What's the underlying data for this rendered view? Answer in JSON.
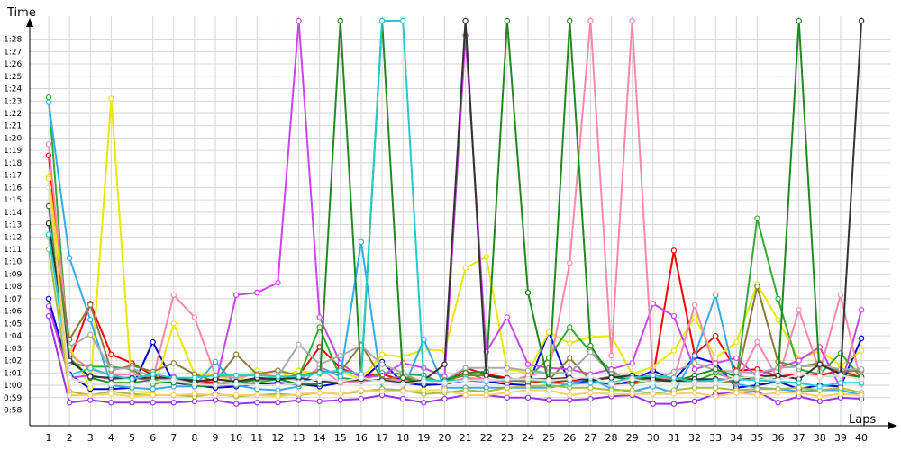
{
  "chart_data": {
    "type": "line",
    "ylabel": "Time",
    "xlabel": "Laps",
    "x": [
      1,
      2,
      3,
      4,
      5,
      6,
      7,
      8,
      9,
      10,
      11,
      12,
      13,
      14,
      15,
      16,
      17,
      18,
      19,
      20,
      21,
      22,
      23,
      24,
      25,
      26,
      27,
      28,
      29,
      30,
      31,
      32,
      33,
      34,
      35,
      36,
      37,
      38,
      39,
      40
    ],
    "y_ticks": [
      "0:58",
      "0:59",
      "1:00",
      "1:01",
      "1:02",
      "1:03",
      "1:04",
      "1:05",
      "1:06",
      "1:07",
      "1:08",
      "1:09",
      "1:10",
      "1:11",
      "1:12",
      "1:13",
      "1:14",
      "1:15",
      "1:16",
      "1:17",
      "1:18",
      "1:19",
      "1:20",
      "1:21",
      "1:22",
      "1:23",
      "1:24",
      "1:25",
      "1:26",
      "1:27",
      "1:28"
    ],
    "ylim_seconds": [
      57.2,
      89.5
    ],
    "grid": true,
    "series": [
      {
        "color": "#ff0000",
        "values": [
          78.6,
          62,
          66.6,
          62.5,
          61.8,
          60.8,
          60.6,
          60.4,
          60.2,
          60.1,
          60.5,
          60.6,
          60.8,
          63.1,
          61.4,
          60.7,
          60.9,
          60.4,
          60.3,
          60.1,
          61.4,
          60.9,
          60.6,
          60.3,
          60.2,
          60.4,
          60.3,
          60.1,
          60.2,
          60.7,
          70.9,
          62.5,
          64,
          61.2,
          61.3,
          60.7,
          60.9,
          60.8,
          61.2,
          60.6
        ]
      },
      {
        "color": "#0000dd",
        "values": [
          67,
          60.9,
          59.7,
          59.7,
          59.8,
          63.5,
          60.2,
          60,
          59.8,
          59.9,
          60.1,
          60.2,
          60.1,
          59.9,
          60.2,
          60.4,
          61.9,
          60.2,
          60,
          60.1,
          60.4,
          60.3,
          60.1,
          60,
          64.3,
          60.1,
          60.3,
          60.1,
          60.4,
          61.2,
          60.4,
          62.3,
          61.8,
          59.8,
          60,
          60.3,
          59.7,
          60,
          59.9,
          63.8
        ]
      },
      {
        "color": "#e8e800",
        "values": [
          76.9,
          63.1,
          59.8,
          83.2,
          59.5,
          59.4,
          65,
          60.9,
          60.8,
          60.3,
          61.2,
          60.6,
          61.2,
          60.9,
          61.1,
          60.5,
          62.5,
          62.3,
          62.9,
          62.8,
          69.5,
          70.4,
          61.3,
          61,
          64.3,
          63.4,
          63.9,
          64,
          60.9,
          61.5,
          62.8,
          65.5,
          62.2,
          63.5,
          68.2,
          65.3,
          62.1,
          62.8,
          61.6,
          62.8
        ]
      },
      {
        "color": "#33aa33",
        "values": [
          83.3,
          61.8,
          61.5,
          61.5,
          61.3,
          60.1,
          60.4,
          59.9,
          60,
          60,
          60.2,
          60.5,
          60.7,
          64.7,
          60.6,
          60.4,
          61,
          60.9,
          60.8,
          60.1,
          61.1,
          60.4,
          60.4,
          60.6,
          62.2,
          64.7,
          62.7,
          61.2,
          60.1,
          60.4,
          60.3,
          60.3,
          61,
          60.4,
          73.5,
          67,
          61.3,
          60.9,
          62.6,
          60.6
        ]
      },
      {
        "color": "#cc44ee",
        "values": [
          66.4,
          60.6,
          60.8,
          60.5,
          60.6,
          60.4,
          60.7,
          60.2,
          60,
          67.3,
          67.5,
          68.3,
          89.5,
          65.5,
          61.8,
          60.6,
          60.8,
          61.8,
          61.4,
          60.7,
          88.3,
          62.7,
          65.5,
          61.7,
          61.4,
          61.3,
          60.9,
          61.3,
          61.8,
          66.6,
          65.6,
          61.3,
          61.8,
          62.2,
          60.7,
          61.4,
          62,
          63.1,
          59.8,
          66.1
        ]
      },
      {
        "color": "#9933ee",
        "values": [
          65.6,
          58.6,
          58.8,
          58.6,
          58.6,
          58.6,
          58.6,
          58.7,
          58.8,
          58.5,
          58.6,
          58.6,
          58.8,
          58.7,
          58.8,
          58.9,
          59.2,
          58.9,
          58.6,
          58.9,
          59.2,
          59.2,
          59,
          59,
          58.8,
          58.8,
          58.9,
          59.1,
          59.2,
          58.5,
          58.5,
          58.7,
          59.3,
          59.4,
          59.5,
          58.6,
          59.1,
          58.7,
          59,
          58.9
        ]
      },
      {
        "color": "#33aaee",
        "values": [
          82.9,
          70.3,
          65.3,
          60,
          59.8,
          59.7,
          59.9,
          59.9,
          61.9,
          60,
          59.7,
          59.6,
          59.9,
          61.5,
          60.7,
          71.6,
          59.7,
          59.6,
          63.7,
          59.8,
          59.8,
          59.8,
          59.8,
          59.8,
          59.8,
          60.1,
          60.6,
          59.7,
          59.5,
          59.9,
          59.4,
          62.4,
          67.3,
          60.1,
          59.8,
          59.7,
          59.5,
          59.6,
          59.6,
          59.2
        ]
      },
      {
        "color": "#aabb44",
        "values": [
          71,
          59.5,
          59.2,
          59.5,
          59.3,
          59.2,
          59.2,
          59.1,
          59.3,
          59.1,
          59.2,
          59.3,
          59.2,
          59.4,
          59.3,
          59.5,
          59.7,
          59.6,
          59.3,
          59.4,
          59.6,
          59.5,
          59.8,
          59.9,
          60,
          59.8,
          59.8,
          59.6,
          59.6,
          59.3,
          59.6,
          59.8,
          59.8,
          59.6,
          59.7,
          59.7,
          59.8,
          59.6,
          59.8,
          59.4
        ]
      },
      {
        "color": "#ff88aa",
        "values": [
          79.5,
          62.5,
          61.3,
          60.8,
          60.9,
          60.5,
          67.3,
          65.5,
          60.8,
          60.6,
          60.9,
          60.7,
          60.4,
          61.4,
          60.2,
          60.3,
          60.5,
          60.4,
          60.3,
          60.1,
          60.6,
          60.5,
          60.2,
          60.8,
          61.1,
          69.9,
          89.5,
          62.4,
          89.5,
          60.6,
          60.5,
          66.5,
          61.2,
          60.2,
          63.5,
          60.5,
          66.1,
          61.1,
          67.3,
          60.1
        ]
      },
      {
        "color": "#8b7b3a",
        "values": [
          74.5,
          63.7,
          66.5,
          61.2,
          61.6,
          61.1,
          61.8,
          60.9,
          60.3,
          62.5,
          60.9,
          61.2,
          60.8,
          61.1,
          61.1,
          63.3,
          60.5,
          60.7,
          60.3,
          60.4,
          60.8,
          60.8,
          60.4,
          60.3,
          60.4,
          62.2,
          60.4,
          60.7,
          60.8,
          60.2,
          60.6,
          60.5,
          60.3,
          60.3,
          68,
          61.9,
          61.5,
          61.8,
          61.1,
          61.2
        ]
      },
      {
        "color": "#aaaaaa",
        "values": [
          72,
          63.1,
          64.1,
          61.3,
          61.4,
          60.6,
          60.4,
          60.2,
          60.1,
          60.4,
          60.3,
          60.7,
          63.3,
          61.7,
          62.4,
          63.2,
          61.7,
          61,
          60.2,
          60.4,
          61.4,
          61.4,
          61.4,
          61.2,
          61,
          61,
          62.7,
          60.9,
          60.5,
          60.4,
          61.1,
          61.8,
          61.2,
          61.1,
          61,
          61.4,
          61.5,
          61.6,
          61.3,
          61.3
        ]
      },
      {
        "color": "#228822",
        "values": [
          74.5,
          62.2,
          60.6,
          60.2,
          60.2,
          60.4,
          60.2,
          60.2,
          60,
          60.1,
          60.5,
          60.5,
          60.1,
          60.1,
          89.5,
          60.6,
          89.5,
          60.6,
          60.1,
          60.4,
          61,
          61.1,
          89.5,
          67.5,
          60.1,
          89.5,
          63.2,
          60.7,
          60.4,
          60.6,
          60.3,
          60.8,
          61.3,
          60.7,
          60.6,
          60.5,
          89.5,
          60.7,
          60.8,
          60.7
        ]
      },
      {
        "color": "#333333",
        "values": [
          73.1,
          62,
          60.7,
          60.6,
          60.6,
          60.6,
          60.6,
          60.3,
          60.5,
          60.3,
          60.6,
          60.5,
          60.6,
          60.3,
          60.3,
          60.5,
          60.4,
          60.2,
          60.4,
          61.7,
          89.5,
          60.8,
          60.5,
          60.5,
          60.5,
          60.6,
          60.4,
          60.6,
          60.8,
          60.5,
          60.3,
          60.5,
          60.5,
          60.4,
          60.7,
          60.8,
          60.5,
          61.7,
          60.9,
          89.5
        ]
      },
      {
        "color": "#22cccc",
        "values": [
          72.2,
          60.8,
          61.4,
          60.8,
          60.5,
          60.9,
          60.6,
          60.6,
          60.8,
          60.8,
          60.8,
          60.7,
          60.7,
          61,
          61.2,
          60.9,
          89.5,
          89.5,
          60.5,
          60.3,
          60.5,
          60.3,
          60.5,
          60.5,
          60.2,
          60.1,
          60.2,
          60.2,
          60.6,
          60.8,
          60.6,
          60.3,
          60.4,
          60.5,
          60.4,
          60.3,
          60.2,
          59.9,
          60.2,
          60.2
        ]
      },
      {
        "color": "#dddddd",
        "values": [
          76,
          60.6,
          60.1,
          60.1,
          60.1,
          60.3,
          60.4,
          60.1,
          60,
          60.1,
          60,
          60,
          60.2,
          60.5,
          60.3,
          60.6,
          60.3,
          60.1,
          60.3,
          60.2,
          60.4,
          60.4,
          60.5,
          60.5,
          60.4,
          60.5,
          60.7,
          60.1,
          60.5,
          60.2,
          60.2,
          60.2,
          60.2,
          60.6,
          60.7,
          60.4,
          60.9,
          60.7,
          60.8,
          60.5
        ]
      },
      {
        "color": "#ffcc66",
        "values": [
          76.7,
          59.2,
          59.2,
          59.3,
          59.1,
          59.2,
          59.2,
          59.3,
          59.2,
          59.2,
          59.2,
          59.1,
          59.3,
          59.4,
          59.3,
          59.6,
          59.5,
          59.5,
          59.6,
          59.6,
          59.2,
          59.2,
          59.4,
          59.6,
          59.6,
          59.2,
          59.4,
          59.3,
          59.3,
          59.3,
          59.3,
          59.4,
          59.1,
          59.4,
          59.2,
          59.4,
          59.4,
          59.1,
          59.3,
          59.2
        ]
      }
    ]
  }
}
